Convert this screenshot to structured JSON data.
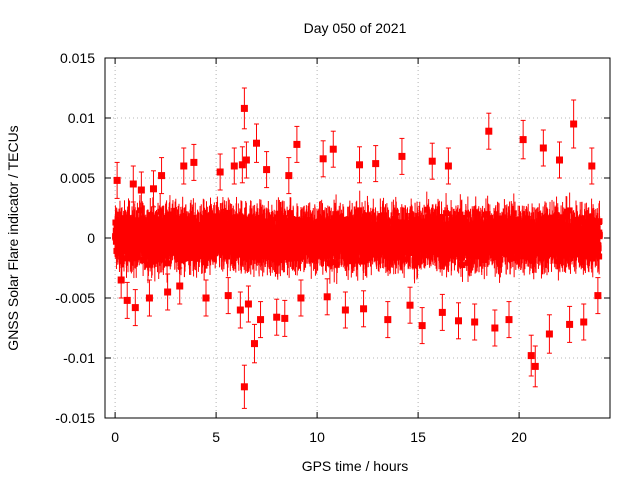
{
  "chart_data": {
    "type": "scatter",
    "title": "Day 050 of 2021",
    "xlabel": "GPS time / hours",
    "ylabel": "GNSS Solar Flare indicator / TECUs",
    "xlim": [
      -0.5,
      24.5
    ],
    "ylim": [
      -0.015,
      0.015
    ],
    "xticks": [
      0,
      5,
      10,
      15,
      20
    ],
    "xtick_labels": [
      "0",
      "5",
      "10",
      "15",
      "20"
    ],
    "yticks": [
      -0.015,
      -0.01,
      -0.005,
      0,
      0.005,
      0.01,
      0.015
    ],
    "ytick_labels": [
      "-0.015",
      "-0.01",
      "-0.005",
      "0",
      "0.005",
      "0.01",
      "0.015"
    ],
    "grid": true,
    "legend": "none",
    "series": [
      {
        "color": "#ff0000",
        "marker": "square",
        "errorbars": true,
        "points": [
          {
            "x": 0.1,
            "y": 0.0048,
            "err": 0.0015
          },
          {
            "x": 0.3,
            "y": -0.0035,
            "err": 0.0015
          },
          {
            "x": 0.6,
            "y": -0.0052,
            "err": 0.0015
          },
          {
            "x": 0.9,
            "y": 0.0045,
            "err": 0.0015
          },
          {
            "x": 1.0,
            "y": -0.0058,
            "err": 0.0015
          },
          {
            "x": 1.3,
            "y": 0.004,
            "err": 0.0015
          },
          {
            "x": 1.7,
            "y": -0.005,
            "err": 0.0015
          },
          {
            "x": 1.9,
            "y": 0.0041,
            "err": 0.0015
          },
          {
            "x": 2.3,
            "y": 0.0052,
            "err": 0.0015
          },
          {
            "x": 2.6,
            "y": -0.0045,
            "err": 0.0015
          },
          {
            "x": 3.2,
            "y": -0.004,
            "err": 0.0015
          },
          {
            "x": 3.4,
            "y": 0.006,
            "err": 0.0015
          },
          {
            "x": 3.9,
            "y": 0.0063,
            "err": 0.0015
          },
          {
            "x": 4.5,
            "y": -0.005,
            "err": 0.0015
          },
          {
            "x": 5.2,
            "y": 0.0055,
            "err": 0.0015
          },
          {
            "x": 5.6,
            "y": -0.0048,
            "err": 0.0015
          },
          {
            "x": 5.9,
            "y": 0.006,
            "err": 0.0015
          },
          {
            "x": 6.2,
            "y": -0.006,
            "err": 0.0015
          },
          {
            "x": 6.3,
            "y": 0.0061,
            "err": 0.0015
          },
          {
            "x": 6.4,
            "y": 0.0108,
            "err": 0.0017
          },
          {
            "x": 6.4,
            "y": -0.0124,
            "err": 0.0018
          },
          {
            "x": 6.5,
            "y": 0.0065,
            "err": 0.0015
          },
          {
            "x": 6.6,
            "y": -0.0055,
            "err": 0.0015
          },
          {
            "x": 6.9,
            "y": -0.0088,
            "err": 0.0016
          },
          {
            "x": 7.0,
            "y": 0.0079,
            "err": 0.0016
          },
          {
            "x": 7.2,
            "y": -0.0068,
            "err": 0.0015
          },
          {
            "x": 7.5,
            "y": 0.0057,
            "err": 0.0015
          },
          {
            "x": 8.0,
            "y": -0.0066,
            "err": 0.0015
          },
          {
            "x": 8.4,
            "y": -0.0067,
            "err": 0.0015
          },
          {
            "x": 8.6,
            "y": 0.0052,
            "err": 0.0015
          },
          {
            "x": 9.0,
            "y": 0.0078,
            "err": 0.0015
          },
          {
            "x": 9.2,
            "y": -0.005,
            "err": 0.0015
          },
          {
            "x": 10.3,
            "y": 0.0066,
            "err": 0.0015
          },
          {
            "x": 10.5,
            "y": -0.0049,
            "err": 0.0015
          },
          {
            "x": 10.8,
            "y": 0.0074,
            "err": 0.0015
          },
          {
            "x": 11.4,
            "y": -0.006,
            "err": 0.0015
          },
          {
            "x": 12.1,
            "y": 0.0061,
            "err": 0.0015
          },
          {
            "x": 12.3,
            "y": -0.0059,
            "err": 0.0015
          },
          {
            "x": 12.9,
            "y": 0.0062,
            "err": 0.0015
          },
          {
            "x": 13.5,
            "y": -0.0068,
            "err": 0.0015
          },
          {
            "x": 14.2,
            "y": 0.0068,
            "err": 0.0015
          },
          {
            "x": 14.6,
            "y": -0.0056,
            "err": 0.0015
          },
          {
            "x": 15.2,
            "y": -0.0073,
            "err": 0.0015
          },
          {
            "x": 15.7,
            "y": 0.0064,
            "err": 0.0015
          },
          {
            "x": 16.2,
            "y": -0.0062,
            "err": 0.0015
          },
          {
            "x": 16.5,
            "y": 0.006,
            "err": 0.0015
          },
          {
            "x": 17.0,
            "y": -0.0069,
            "err": 0.0015
          },
          {
            "x": 17.8,
            "y": -0.007,
            "err": 0.0015
          },
          {
            "x": 18.5,
            "y": 0.0089,
            "err": 0.0015
          },
          {
            "x": 18.8,
            "y": -0.0075,
            "err": 0.0015
          },
          {
            "x": 19.5,
            "y": -0.0068,
            "err": 0.0015
          },
          {
            "x": 20.2,
            "y": 0.0082,
            "err": 0.0016
          },
          {
            "x": 20.6,
            "y": -0.0098,
            "err": 0.0017
          },
          {
            "x": 20.8,
            "y": -0.0107,
            "err": 0.0017
          },
          {
            "x": 21.2,
            "y": 0.0075,
            "err": 0.0015
          },
          {
            "x": 21.5,
            "y": -0.008,
            "err": 0.0016
          },
          {
            "x": 22.0,
            "y": 0.0065,
            "err": 0.0015
          },
          {
            "x": 22.5,
            "y": -0.0072,
            "err": 0.0015
          },
          {
            "x": 22.7,
            "y": 0.0095,
            "err": 0.002
          },
          {
            "x": 23.2,
            "y": -0.007,
            "err": 0.0015
          },
          {
            "x": 23.6,
            "y": 0.006,
            "err": 0.0015
          },
          {
            "x": 23.9,
            "y": -0.0048,
            "err": 0.0015
          }
        ],
        "dense_band": {
          "x_range": [
            0,
            24
          ],
          "interval_hours": 0.0083,
          "y_amplitude": 0.0025,
          "err": 0.0015
        }
      }
    ]
  }
}
